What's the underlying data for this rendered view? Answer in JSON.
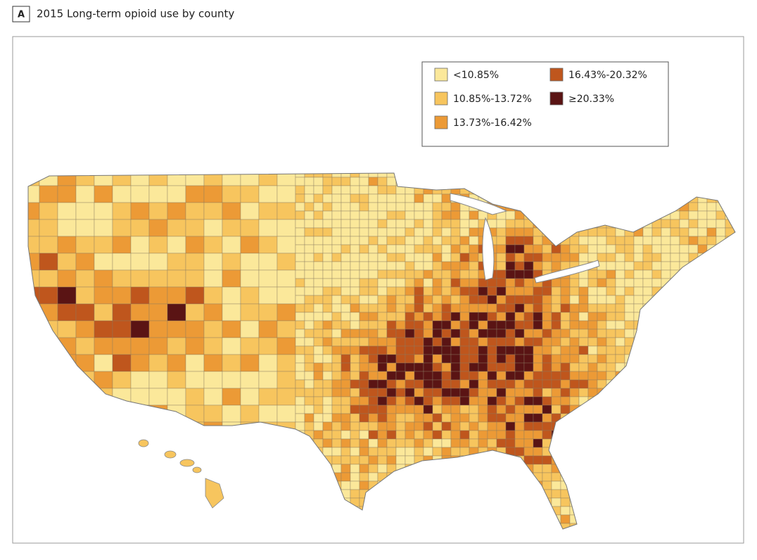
{
  "panel": "A",
  "title": "2015 Long-term opioid use by county",
  "legend": [
    {
      "label": "<10.85%",
      "color": "#fbe89a"
    },
    {
      "label": "10.85%-13.72%",
      "color": "#f7c55e"
    },
    {
      "label": "13.73%-16.42%",
      "color": "#ec9a36"
    },
    {
      "label": "16.43%-20.32%",
      "color": "#bf561d"
    },
    {
      "label": "≥20.33%",
      "color": "#5a1414"
    }
  ]
}
